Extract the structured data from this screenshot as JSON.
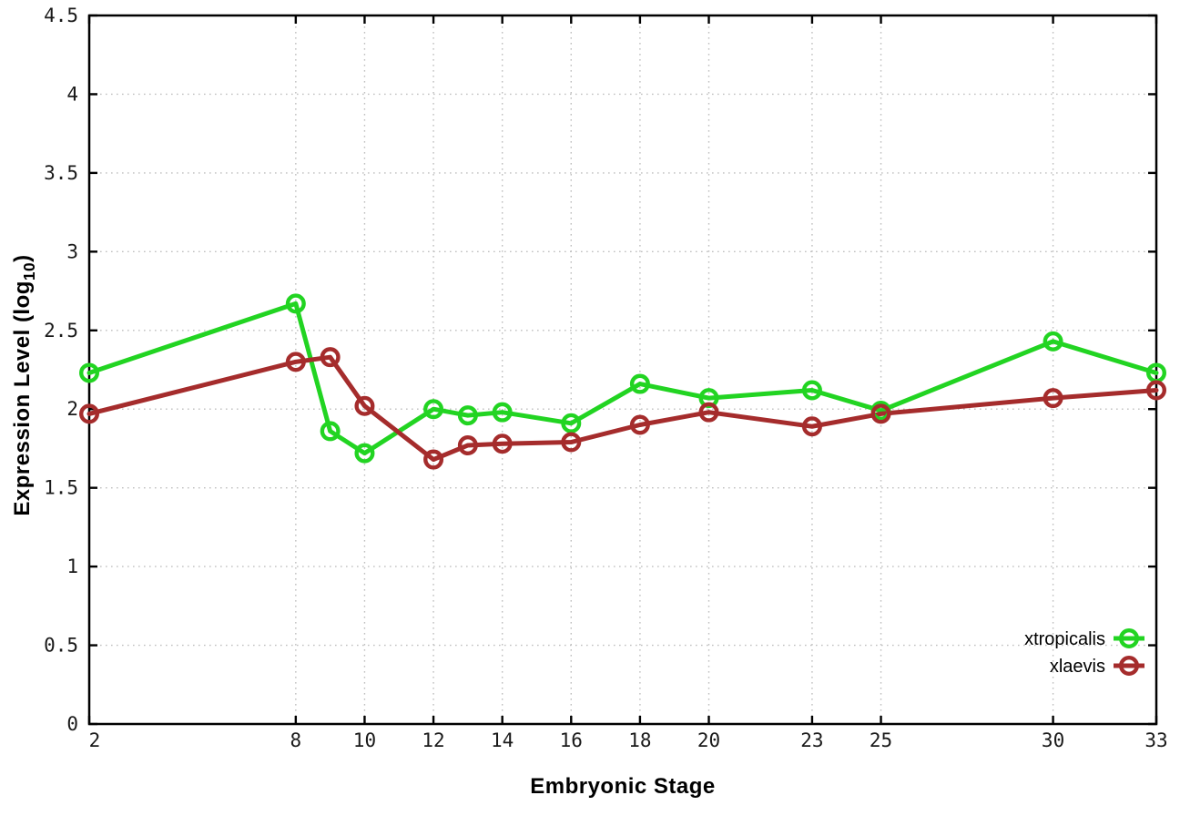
{
  "chart_data": {
    "type": "line",
    "title": "",
    "xlabel": "Embryonic Stage",
    "ylabel": "Expression Level (log10)",
    "ylabel_parts": {
      "pre": "Expression Level (log",
      "sub": "10",
      "post": ")"
    },
    "x": [
      2,
      8,
      9,
      10,
      12,
      13,
      14,
      16,
      18,
      20,
      23,
      25,
      30,
      33
    ],
    "series": [
      {
        "name": "xtropicalis",
        "color": "#22d422",
        "values": [
          2.23,
          2.67,
          1.86,
          1.72,
          2.0,
          1.96,
          1.98,
          1.91,
          2.16,
          2.07,
          2.12,
          1.99,
          2.43,
          2.23
        ]
      },
      {
        "name": "xlaevis",
        "color": "#a52c2c",
        "values": [
          1.97,
          2.3,
          2.33,
          2.02,
          1.68,
          1.77,
          1.78,
          1.79,
          1.9,
          1.98,
          1.89,
          1.97,
          2.07,
          2.12
        ]
      }
    ],
    "xticks": {
      "values": [
        2,
        8,
        10,
        12,
        14,
        16,
        18,
        20,
        23,
        25,
        30,
        33
      ],
      "labels": [
        "2",
        "8",
        "10",
        "12",
        "14",
        "16",
        "18",
        "20",
        "23",
        "25",
        "30",
        "33"
      ]
    },
    "yticks": {
      "values": [
        0,
        0.5,
        1,
        1.5,
        2,
        2.5,
        3,
        3.5,
        4,
        4.5
      ],
      "labels": [
        "0",
        "0.5",
        "1",
        "1.5",
        "2",
        "2.5",
        "3",
        "3.5",
        "4",
        "4.5"
      ]
    },
    "xlim": [
      2,
      33
    ],
    "ylim": [
      0,
      4.5
    ],
    "grid": true,
    "marker": "open-circle",
    "legend": {
      "position": "bottom-right",
      "entries": [
        "xtropicalis",
        "xlaevis"
      ]
    },
    "colors": {
      "frame": "#000000",
      "grid": "#bfbfbf",
      "tick_text": "#1a1a1a",
      "legend_text": "#000000"
    }
  }
}
